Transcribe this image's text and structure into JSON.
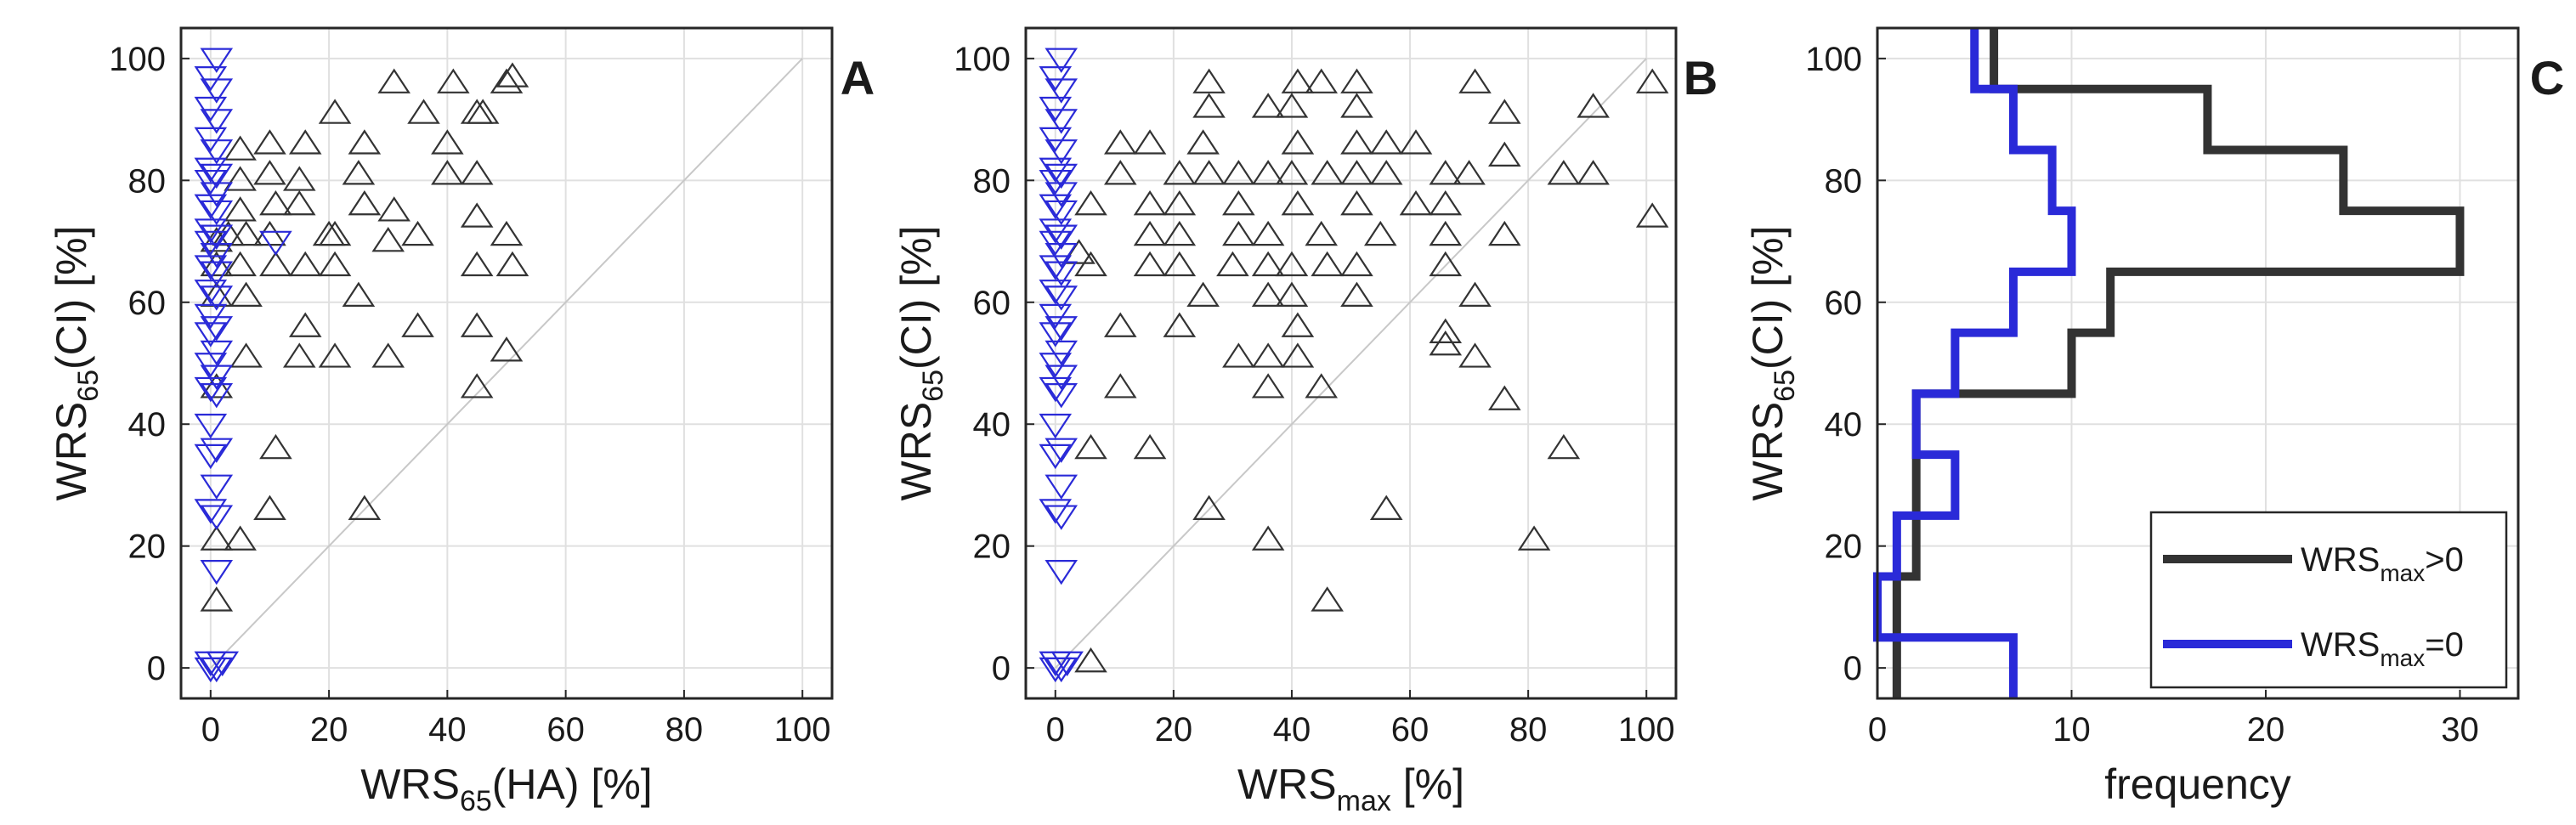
{
  "colors": {
    "black_series": "#333333",
    "blue_series": "#2a2ad8",
    "grid": "#e0e0e0",
    "axis": "#262626",
    "diagonal": "#c8c8c8"
  },
  "chart_data": [
    {
      "panel": "A",
      "type": "scatter",
      "xlabel": {
        "main": "WRS",
        "sub": "65",
        "tail": "(HA) [%]"
      },
      "ylabel": {
        "main": "WRS",
        "sub": "65",
        "tail": "(CI) [%]"
      },
      "xlim": [
        -5,
        105
      ],
      "ylim": [
        -5,
        105
      ],
      "xticks": [
        "0",
        "20",
        "40",
        "60",
        "80",
        "100"
      ],
      "yticks": [
        "0",
        "20",
        "40",
        "60",
        "80",
        "100"
      ],
      "grid": true,
      "reference_line": {
        "from": [
          0,
          0
        ],
        "to": [
          100,
          100
        ]
      },
      "series": [
        {
          "name": "WRSmax>0",
          "marker": "triangle-up",
          "color": "#333333",
          "points": [
            [
              5,
              85
            ],
            [
              10,
              86
            ],
            [
              16,
              86
            ],
            [
              21,
              91
            ],
            [
              26,
              86
            ],
            [
              31,
              96
            ],
            [
              36,
              91
            ],
            [
              41,
              96
            ],
            [
              45,
              91
            ],
            [
              50,
              96
            ],
            [
              5,
              80
            ],
            [
              10,
              81
            ],
            [
              15,
              80
            ],
            [
              25,
              81
            ],
            [
              40,
              81
            ],
            [
              45,
              81
            ],
            [
              40,
              86
            ],
            [
              46,
              91
            ],
            [
              51,
              97
            ],
            [
              5,
              75
            ],
            [
              11,
              76
            ],
            [
              15,
              76
            ],
            [
              21,
              71
            ],
            [
              26,
              76
            ],
            [
              31,
              75
            ],
            [
              35,
              71
            ],
            [
              45,
              74
            ],
            [
              50,
              71
            ],
            [
              1,
              70
            ],
            [
              3,
              71
            ],
            [
              6,
              71
            ],
            [
              10,
              71
            ],
            [
              20,
              71
            ],
            [
              30,
              70
            ],
            [
              1,
              66
            ],
            [
              5,
              66
            ],
            [
              11,
              66
            ],
            [
              16,
              66
            ],
            [
              21,
              66
            ],
            [
              45,
              66
            ],
            [
              51,
              66
            ],
            [
              1,
              61
            ],
            [
              6,
              61
            ],
            [
              25,
              61
            ],
            [
              16,
              56
            ],
            [
              35,
              56
            ],
            [
              45,
              56
            ],
            [
              6,
              51
            ],
            [
              15,
              51
            ],
            [
              21,
              51
            ],
            [
              30,
              51
            ],
            [
              50,
              52
            ],
            [
              1,
              46
            ],
            [
              45,
              46
            ],
            [
              11,
              36
            ],
            [
              10,
              26
            ],
            [
              26,
              26
            ],
            [
              5,
              21
            ],
            [
              1,
              21
            ],
            [
              1,
              11
            ]
          ]
        },
        {
          "name": "WRSmax=0",
          "marker": "triangle-down",
          "color": "#2a2ad8",
          "points": [
            [
              1,
              100
            ],
            [
              0,
              97
            ],
            [
              1,
              95
            ],
            [
              0,
              92
            ],
            [
              1,
              90
            ],
            [
              0,
              87
            ],
            [
              1,
              85
            ],
            [
              0,
              82
            ],
            [
              1,
              81
            ],
            [
              0,
              80
            ],
            [
              1,
              78
            ],
            [
              0,
              76
            ],
            [
              1,
              75
            ],
            [
              0,
              72
            ],
            [
              1,
              71
            ],
            [
              0,
              70
            ],
            [
              1,
              68
            ],
            [
              0,
              66
            ],
            [
              1,
              65
            ],
            [
              0,
              62
            ],
            [
              1,
              61
            ],
            [
              0,
              58
            ],
            [
              1,
              56
            ],
            [
              0,
              55
            ],
            [
              1,
              52
            ],
            [
              0,
              50
            ],
            [
              1,
              48
            ],
            [
              0,
              46
            ],
            [
              1,
              45
            ],
            [
              0,
              40
            ],
            [
              1,
              36
            ],
            [
              0,
              35
            ],
            [
              1,
              30
            ],
            [
              0,
              26
            ],
            [
              1,
              25
            ],
            [
              1,
              16
            ],
            [
              0,
              1
            ],
            [
              1,
              0
            ],
            [
              2,
              1
            ],
            [
              0,
              0
            ],
            [
              11,
              70
            ]
          ]
        }
      ],
      "panel_label": "A"
    },
    {
      "panel": "B",
      "type": "scatter",
      "xlabel": {
        "main": "WRS",
        "sub": "max",
        "tail": " [%]"
      },
      "ylabel": {
        "main": "WRS",
        "sub": "65",
        "tail": "(CI) [%]"
      },
      "xlim": [
        -5,
        105
      ],
      "ylim": [
        -5,
        105
      ],
      "xticks": [
        "0",
        "20",
        "40",
        "60",
        "80",
        "100"
      ],
      "yticks": [
        "0",
        "20",
        "40",
        "60",
        "80",
        "100"
      ],
      "grid": true,
      "reference_line": {
        "from": [
          0,
          0
        ],
        "to": [
          100,
          100
        ]
      },
      "series": [
        {
          "name": "WRSmax>0",
          "marker": "triangle-up",
          "color": "#333333",
          "points": [
            [
              26,
              96
            ],
            [
              41,
              96
            ],
            [
              45,
              96
            ],
            [
              51,
              96
            ],
            [
              71,
              96
            ],
            [
              101,
              96
            ],
            [
              26,
              92
            ],
            [
              36,
              92
            ],
            [
              40,
              92
            ],
            [
              51,
              92
            ],
            [
              76,
              91
            ],
            [
              91,
              92
            ],
            [
              11,
              86
            ],
            [
              16,
              86
            ],
            [
              25,
              86
            ],
            [
              41,
              86
            ],
            [
              51,
              86
            ],
            [
              56,
              86
            ],
            [
              61,
              86
            ],
            [
              11,
              81
            ],
            [
              21,
              81
            ],
            [
              26,
              81
            ],
            [
              31,
              81
            ],
            [
              36,
              81
            ],
            [
              40,
              81
            ],
            [
              46,
              81
            ],
            [
              51,
              81
            ],
            [
              56,
              81
            ],
            [
              66,
              81
            ],
            [
              70,
              81
            ],
            [
              86,
              81
            ],
            [
              91,
              81
            ],
            [
              76,
              84
            ],
            [
              6,
              76
            ],
            [
              16,
              76
            ],
            [
              21,
              76
            ],
            [
              31,
              76
            ],
            [
              41,
              76
            ],
            [
              51,
              76
            ],
            [
              61,
              76
            ],
            [
              66,
              76
            ],
            [
              16,
              71
            ],
            [
              21,
              71
            ],
            [
              31,
              71
            ],
            [
              36,
              71
            ],
            [
              45,
              71
            ],
            [
              55,
              71
            ],
            [
              66,
              71
            ],
            [
              76,
              71
            ],
            [
              101,
              74
            ],
            [
              6,
              66
            ],
            [
              16,
              66
            ],
            [
              21,
              66
            ],
            [
              30,
              66
            ],
            [
              36,
              66
            ],
            [
              40,
              66
            ],
            [
              46,
              66
            ],
            [
              51,
              66
            ],
            [
              66,
              66
            ],
            [
              4,
              68
            ],
            [
              25,
              61
            ],
            [
              36,
              61
            ],
            [
              40,
              61
            ],
            [
              51,
              61
            ],
            [
              71,
              61
            ],
            [
              11,
              56
            ],
            [
              21,
              56
            ],
            [
              41,
              56
            ],
            [
              66,
              55
            ],
            [
              66,
              53
            ],
            [
              31,
              51
            ],
            [
              36,
              51
            ],
            [
              41,
              51
            ],
            [
              71,
              51
            ],
            [
              11,
              46
            ],
            [
              36,
              46
            ],
            [
              45,
              46
            ],
            [
              76,
              44
            ],
            [
              6,
              36
            ],
            [
              16,
              36
            ],
            [
              86,
              36
            ],
            [
              26,
              26
            ],
            [
              56,
              26
            ],
            [
              36,
              21
            ],
            [
              81,
              21
            ],
            [
              46,
              11
            ],
            [
              6,
              1
            ]
          ]
        },
        {
          "name": "WRSmax=0",
          "marker": "triangle-down",
          "color": "#2a2ad8",
          "points": [
            [
              1,
              100
            ],
            [
              0,
              97
            ],
            [
              1,
              95
            ],
            [
              0,
              92
            ],
            [
              1,
              90
            ],
            [
              0,
              87
            ],
            [
              1,
              85
            ],
            [
              0,
              82
            ],
            [
              1,
              81
            ],
            [
              0,
              80
            ],
            [
              1,
              78
            ],
            [
              0,
              76
            ],
            [
              1,
              75
            ],
            [
              0,
              72
            ],
            [
              1,
              71
            ],
            [
              0,
              70
            ],
            [
              1,
              68
            ],
            [
              0,
              66
            ],
            [
              1,
              65
            ],
            [
              0,
              62
            ],
            [
              1,
              61
            ],
            [
              0,
              58
            ],
            [
              1,
              56
            ],
            [
              0,
              55
            ],
            [
              1,
              52
            ],
            [
              0,
              50
            ],
            [
              1,
              48
            ],
            [
              0,
              46
            ],
            [
              1,
              45
            ],
            [
              0,
              40
            ],
            [
              1,
              36
            ],
            [
              0,
              35
            ],
            [
              1,
              30
            ],
            [
              0,
              26
            ],
            [
              1,
              25
            ],
            [
              1,
              16
            ],
            [
              0,
              1
            ],
            [
              1,
              0
            ],
            [
              2,
              1
            ],
            [
              0,
              0
            ]
          ]
        }
      ],
      "panel_label": "B"
    },
    {
      "panel": "C",
      "type": "line",
      "subtype": "horizontal-stairs-histogram",
      "xlabel": {
        "main": "frequency",
        "sub": "",
        "tail": ""
      },
      "ylabel": {
        "main": "WRS",
        "sub": "65",
        "tail": "(CI) [%]"
      },
      "xlim": [
        0,
        33
      ],
      "ylim": [
        -5,
        105
      ],
      "xticks": [
        "0",
        "10",
        "20",
        "30"
      ],
      "yticks": [
        "0",
        "20",
        "40",
        "60",
        "80",
        "100"
      ],
      "grid": true,
      "bin_edges": [
        -5,
        5,
        15,
        25,
        35,
        45,
        55,
        65,
        75,
        85,
        95,
        105
      ],
      "series": [
        {
          "name_main": "WRS",
          "name_sub": "max",
          "name_tail": ">0",
          "color": "#333333",
          "counts": [
            1,
            1,
            2,
            2,
            2,
            10,
            12,
            30,
            24,
            17,
            6
          ]
        },
        {
          "name_main": "WRS",
          "name_sub": "max",
          "name_tail": "=0",
          "color": "#2a2ad8",
          "counts": [
            7,
            0,
            1,
            4,
            2,
            4,
            7,
            10,
            9,
            7,
            5
          ]
        }
      ],
      "legend_position": "bottom-right",
      "panel_label": "C"
    }
  ]
}
